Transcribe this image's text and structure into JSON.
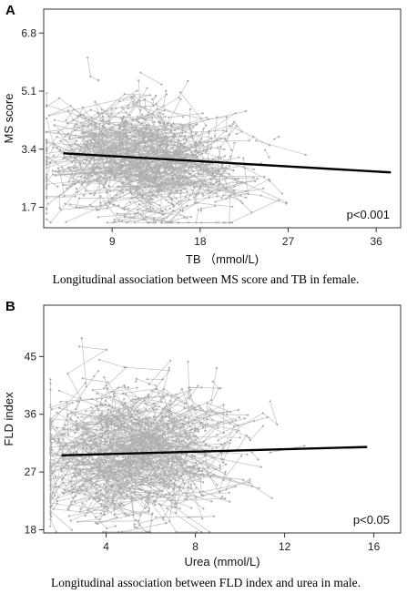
{
  "chart_data": [
    {
      "panel": "A",
      "type": "line",
      "subtype": "spaghetti-with-trend",
      "xlabel": "TB （mmol/L)",
      "ylabel": "MS score",
      "x_ticks": [
        9,
        18,
        27,
        36
      ],
      "y_ticks": [
        1.7,
        3.4,
        5.1,
        6.8
      ],
      "xlim": [
        2,
        38.5
      ],
      "ylim": [
        1.1,
        7.5
      ],
      "annotation": "p<0.001",
      "caption": "Longitudinal association between MS score and TB in female.",
      "cloud": {
        "x_center": 12.5,
        "x_spread": 3.6,
        "y_center": 3.0,
        "y_spread": 0.7,
        "color": "#b4b4b4"
      },
      "trend": {
        "x": [
          4,
          37.5
        ],
        "y": [
          3.28,
          2.72
        ],
        "color": "#000000"
      },
      "grid": false
    },
    {
      "panel": "B",
      "type": "line",
      "subtype": "spaghetti-with-trend",
      "xlabel": "Urea (mmol/L)",
      "ylabel": "FLD index",
      "x_ticks": [
        4,
        8,
        12,
        16
      ],
      "y_ticks": [
        18,
        27,
        36,
        45
      ],
      "xlim": [
        1.2,
        17.2
      ],
      "ylim": [
        17.5,
        53
      ],
      "annotation": "p<0.05",
      "caption": "Longitudinal association between FLD index and urea in male.",
      "cloud": {
        "x_center": 5.3,
        "x_spread": 1.6,
        "y_center": 29.5,
        "y_spread": 4.0,
        "color": "#b4b4b4"
      },
      "trend": {
        "x": [
          2,
          15.7
        ],
        "y": [
          29.6,
          30.9
        ],
        "color": "#000000"
      },
      "grid": false
    }
  ]
}
